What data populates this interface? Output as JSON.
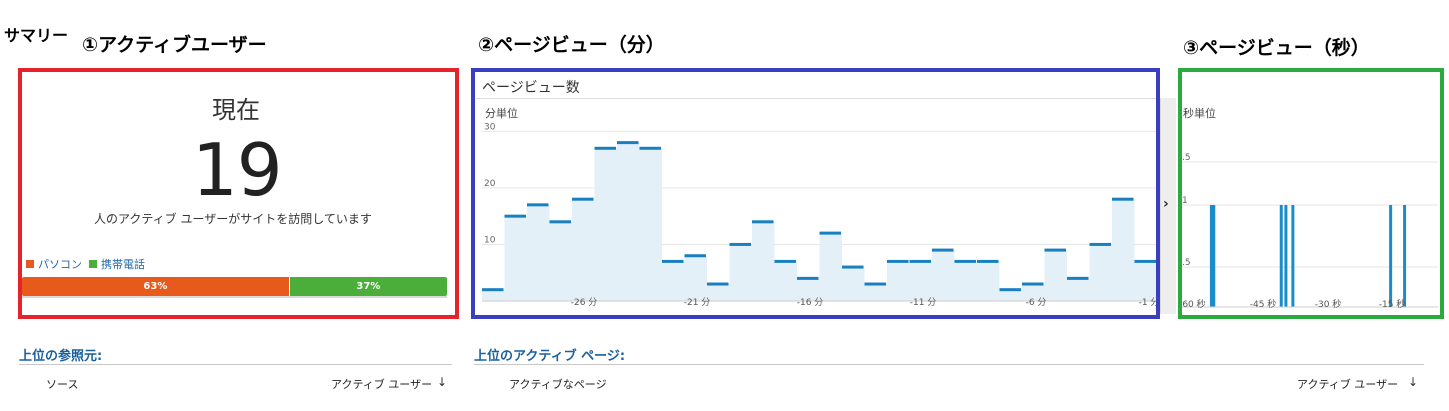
{
  "summary_label": "サマリー",
  "sections": {
    "active_users_title": "①アクティブユーザー",
    "pageview_min_title": "②ページビュー（分）",
    "pageview_sec_title": "③ページビュー（秒）"
  },
  "active_users": {
    "now_label": "現在",
    "count": "19",
    "description": "人のアクティブ ユーザーがサイトを訪問しています",
    "legend": [
      {
        "label": "パソコン",
        "color": "#e85a1c"
      },
      {
        "label": "携帯電話",
        "color": "#4cae3a"
      }
    ],
    "split": [
      {
        "label": "63%",
        "value": 63
      },
      {
        "label": "37%",
        "value": 37
      }
    ]
  },
  "pageviews_minute": {
    "title": "ページビュー数",
    "unit_label": "分単位",
    "chart_data": {
      "type": "bar",
      "ylim": [
        0,
        30
      ],
      "yticks": [
        "30",
        "20",
        "10"
      ],
      "xticks": [
        "-26 分",
        "-21 分",
        "-16 分",
        "-11 分",
        "-6 分",
        "-1 分"
      ],
      "values": [
        2,
        15,
        17,
        14,
        18,
        27,
        28,
        27,
        7,
        8,
        3,
        10,
        14,
        7,
        4,
        12,
        6,
        3,
        7,
        7,
        9,
        7,
        7,
        2,
        3,
        9,
        4,
        10,
        18,
        7
      ]
    }
  },
  "pageviews_second": {
    "unit_label": "秒単位",
    "chart_data": {
      "type": "bar",
      "yticks": [
        ".5",
        "1",
        ".5"
      ],
      "xticks": [
        "60 秒",
        "-45 秒",
        "-30 秒",
        "-15 秒"
      ],
      "values": [
        0,
        0,
        0,
        0,
        0,
        0,
        0,
        0,
        0,
        0,
        0,
        0,
        1,
        1,
        0,
        0,
        0,
        0,
        0,
        0,
        0,
        0,
        0,
        0,
        0,
        0,
        0,
        0,
        0,
        0,
        0,
        0,
        0,
        0,
        0,
        0,
        0,
        0,
        0,
        0,
        0,
        0,
        1,
        0,
        1,
        0,
        0,
        1,
        0,
        0,
        0,
        0,
        0,
        0,
        0,
        0,
        0,
        0,
        0,
        0,
        0,
        0,
        0,
        0,
        0,
        0,
        0,
        0,
        0,
        0,
        0,
        0,
        0,
        0,
        0,
        0,
        0,
        0,
        0,
        0,
        0,
        0,
        0,
        0,
        0,
        0,
        0,
        0,
        0,
        1,
        0,
        0,
        0,
        0,
        0,
        1,
        0,
        0,
        0,
        0,
        0,
        0,
        0,
        0,
        0,
        0,
        0,
        0,
        0,
        0
      ]
    }
  },
  "referrers": {
    "title": "上位の参照元:",
    "col_source": "ソース",
    "col_active": "アクティブ ユーザー"
  },
  "active_pages": {
    "title": "上位のアクティブ ページ:",
    "col_page": "アクティブなページ",
    "col_active": "アクティブ ユーザー"
  },
  "icons": {
    "sort": "sort-desc-icon",
    "expand": "chevron-right-icon"
  }
}
